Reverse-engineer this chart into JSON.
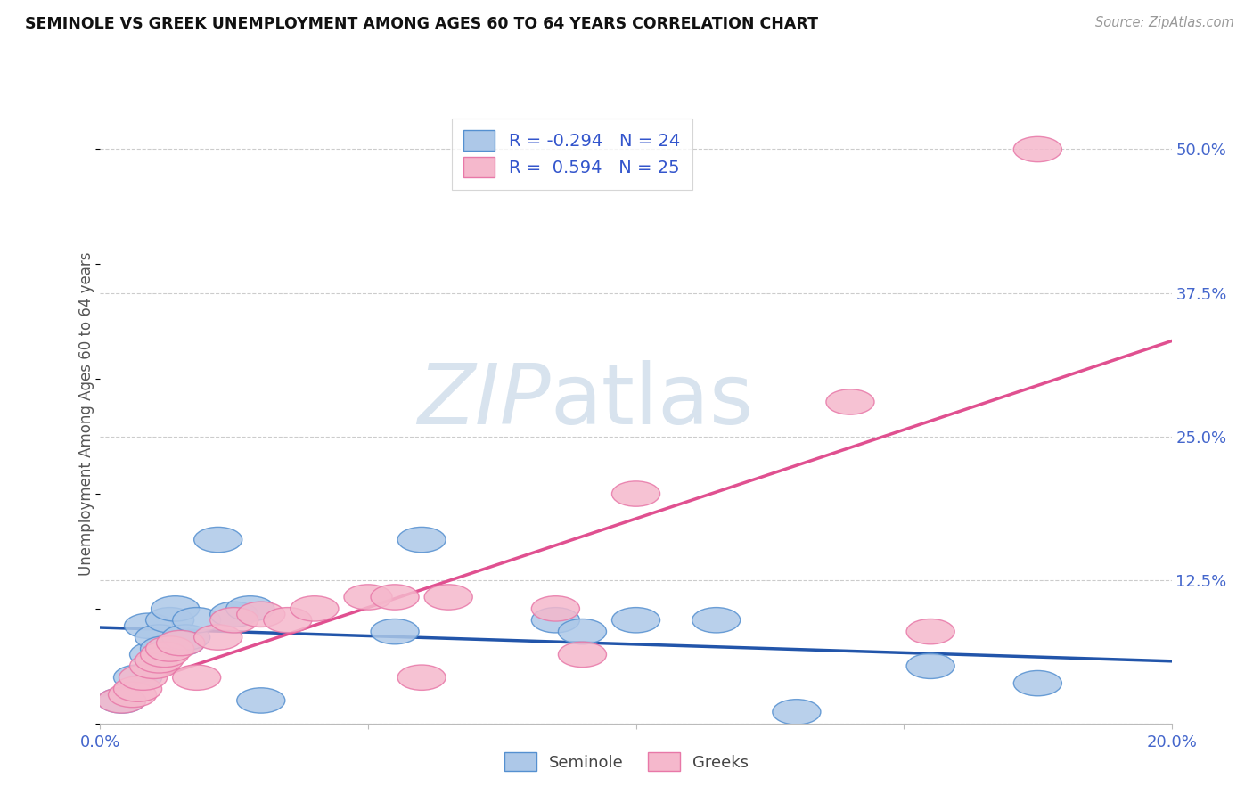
{
  "title": "SEMINOLE VS GREEK UNEMPLOYMENT AMONG AGES 60 TO 64 YEARS CORRELATION CHART",
  "source": "Source: ZipAtlas.com",
  "ylabel": "Unemployment Among Ages 60 to 64 years",
  "xlim": [
    0.0,
    0.2
  ],
  "ylim": [
    0.0,
    0.54
  ],
  "xticks": [
    0.0,
    0.05,
    0.1,
    0.15,
    0.2
  ],
  "xticklabels": [
    "0.0%",
    "",
    "",
    "",
    "20.0%"
  ],
  "ytick_positions": [
    0.0,
    0.125,
    0.25,
    0.375,
    0.5
  ],
  "ytick_labels": [
    "",
    "12.5%",
    "25.0%",
    "37.5%",
    "50.0%"
  ],
  "seminole_R": -0.294,
  "seminole_N": 24,
  "greek_R": 0.594,
  "greek_N": 25,
  "seminole_fill": "#adc8e8",
  "greek_fill": "#f5b8cc",
  "seminole_edge": "#5590d0",
  "greek_edge": "#e878a8",
  "seminole_line_color": "#2255aa",
  "greek_line_color": "#e05090",
  "watermark_zip": "ZIP",
  "watermark_atlas": "atlas",
  "seminole_x": [
    0.004,
    0.007,
    0.009,
    0.01,
    0.011,
    0.012,
    0.013,
    0.014,
    0.015,
    0.016,
    0.018,
    0.022,
    0.025,
    0.028,
    0.03,
    0.055,
    0.06,
    0.085,
    0.09,
    0.1,
    0.115,
    0.13,
    0.155,
    0.175
  ],
  "seminole_y": [
    0.02,
    0.04,
    0.085,
    0.06,
    0.075,
    0.065,
    0.09,
    0.1,
    0.07,
    0.075,
    0.09,
    0.16,
    0.095,
    0.1,
    0.02,
    0.08,
    0.16,
    0.09,
    0.08,
    0.09,
    0.09,
    0.01,
    0.05,
    0.035
  ],
  "greek_x": [
    0.004,
    0.006,
    0.007,
    0.008,
    0.01,
    0.011,
    0.012,
    0.013,
    0.015,
    0.018,
    0.022,
    0.025,
    0.03,
    0.035,
    0.04,
    0.05,
    0.055,
    0.06,
    0.065,
    0.085,
    0.09,
    0.1,
    0.14,
    0.155,
    0.175
  ],
  "greek_y": [
    0.02,
    0.025,
    0.03,
    0.04,
    0.05,
    0.055,
    0.06,
    0.065,
    0.07,
    0.04,
    0.075,
    0.09,
    0.095,
    0.09,
    0.1,
    0.11,
    0.11,
    0.04,
    0.11,
    0.1,
    0.06,
    0.2,
    0.28,
    0.08,
    0.5
  ]
}
